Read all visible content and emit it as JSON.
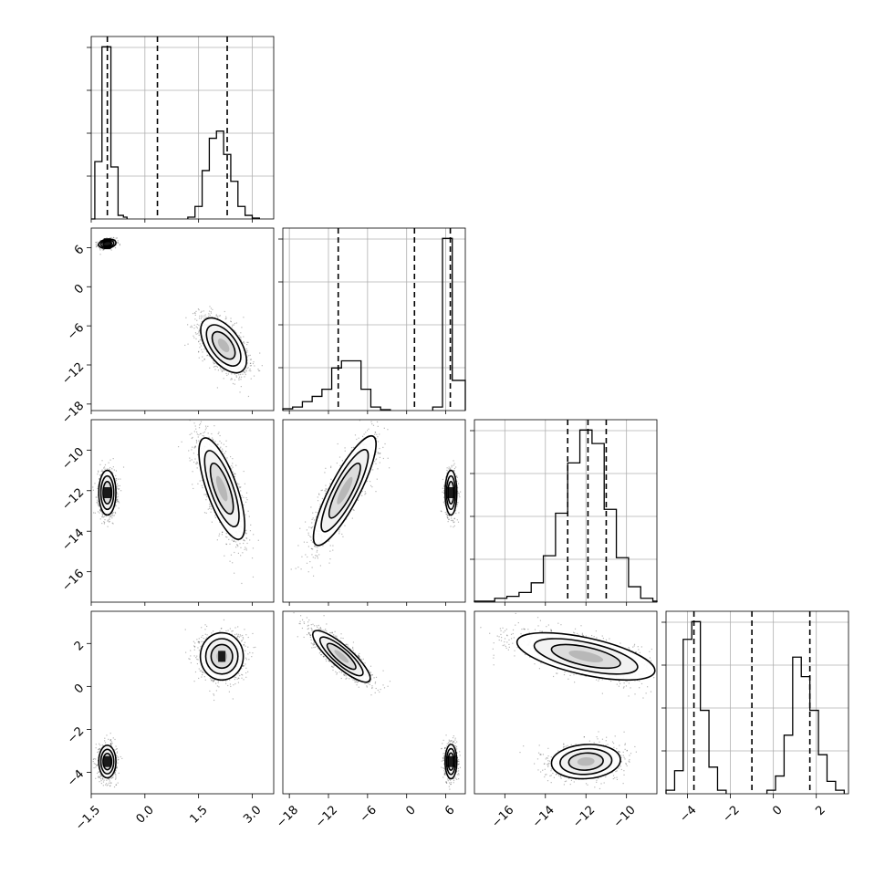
{
  "chart_data": {
    "type": "corner",
    "grid": true,
    "parameters": [
      {
        "id": "p0",
        "range": [
          -1.5,
          3.6
        ],
        "ticks": [
          -1.5,
          0.0,
          1.5,
          3.0
        ],
        "tick_labels": [
          "−1.5",
          "0.0",
          "1.5",
          "3.0"
        ]
      },
      {
        "id": "p1",
        "range": [
          -19,
          9
        ],
        "ticks": [
          -18,
          -12,
          -6,
          0,
          6
        ],
        "tick_labels": [
          "−18",
          "−12",
          "−6",
          "0",
          "6"
        ]
      },
      {
        "id": "p2",
        "range": [
          -17.5,
          -8.5
        ],
        "ticks": [
          -16,
          -14,
          -12,
          -10
        ],
        "tick_labels": [
          "−16",
          "−14",
          "−12",
          "−10"
        ]
      },
      {
        "id": "p3",
        "range": [
          -5,
          3.5
        ],
        "ticks": [
          -4,
          -2,
          0,
          2
        ],
        "tick_labels": [
          "−4",
          "−2",
          "0",
          "2"
        ]
      }
    ],
    "histograms": [
      {
        "param": "p0",
        "bins": [
          [
            -1.5,
            -1.4,
            0
          ],
          [
            -1.4,
            -1.2,
            0.32
          ],
          [
            -1.2,
            -0.95,
            0.96
          ],
          [
            -0.95,
            -0.75,
            0.29
          ],
          [
            -0.75,
            -0.6,
            0.02
          ],
          [
            -0.6,
            -0.5,
            0.01
          ],
          [
            1.2,
            1.4,
            0.01
          ],
          [
            1.4,
            1.6,
            0.07
          ],
          [
            1.6,
            1.8,
            0.27
          ],
          [
            1.8,
            2.0,
            0.45
          ],
          [
            2.0,
            2.2,
            0.49
          ],
          [
            2.2,
            2.4,
            0.36
          ],
          [
            2.4,
            2.6,
            0.21
          ],
          [
            2.6,
            2.8,
            0.07
          ],
          [
            2.8,
            3.0,
            0.02
          ],
          [
            3.0,
            3.2,
            0.005
          ]
        ],
        "quantiles": [
          -1.05,
          0.35,
          2.3
        ]
      },
      {
        "param": "p1",
        "bins": [
          [
            -19,
            -17.5,
            0.01
          ],
          [
            -17.5,
            -16,
            0.02
          ],
          [
            -16,
            -14.5,
            0.05
          ],
          [
            -14.5,
            -13,
            0.08
          ],
          [
            -13,
            -11.5,
            0.12
          ],
          [
            -11.5,
            -10,
            0.24
          ],
          [
            -10,
            -8.5,
            0.28
          ],
          [
            -8.5,
            -7,
            0.28
          ],
          [
            -7,
            -5.5,
            0.12
          ],
          [
            -5.5,
            -4,
            0.02
          ],
          [
            -4,
            -2.5,
            0.005
          ],
          [
            4.0,
            5.5,
            0.02
          ],
          [
            5.5,
            7.0,
            0.97
          ],
          [
            7.0,
            9.0,
            0.17
          ]
        ],
        "quantiles": [
          -10.5,
          1.2,
          6.7
        ]
      },
      {
        "param": "p2",
        "bins": [
          [
            -17.5,
            -16.5,
            0.005
          ],
          [
            -16.5,
            -15.9,
            0.02
          ],
          [
            -15.9,
            -15.3,
            0.03
          ],
          [
            -15.3,
            -14.7,
            0.05
          ],
          [
            -14.7,
            -14.1,
            0.1
          ],
          [
            -14.1,
            -13.5,
            0.24
          ],
          [
            -13.5,
            -12.9,
            0.46
          ],
          [
            -12.9,
            -12.3,
            0.72
          ],
          [
            -12.3,
            -11.7,
            0.89
          ],
          [
            -11.7,
            -11.1,
            0.82
          ],
          [
            -11.1,
            -10.5,
            0.48
          ],
          [
            -10.5,
            -9.9,
            0.23
          ],
          [
            -9.9,
            -9.3,
            0.08
          ],
          [
            -9.3,
            -8.7,
            0.02
          ],
          [
            -8.7,
            -8.5,
            0.005
          ]
        ],
        "quantiles": [
          -12.9,
          -11.9,
          -11.0
        ]
      },
      {
        "param": "p3",
        "bins": [
          [
            -5.0,
            -4.6,
            0.02
          ],
          [
            -4.6,
            -4.2,
            0.13
          ],
          [
            -4.2,
            -3.8,
            0.87
          ],
          [
            -3.8,
            -3.4,
            0.97
          ],
          [
            -3.4,
            -3.0,
            0.47
          ],
          [
            -3.0,
            -2.6,
            0.15
          ],
          [
            -2.6,
            -2.2,
            0.02
          ],
          [
            -0.3,
            0.1,
            0.02
          ],
          [
            0.1,
            0.5,
            0.1
          ],
          [
            0.5,
            0.9,
            0.33
          ],
          [
            0.9,
            1.3,
            0.77
          ],
          [
            1.3,
            1.7,
            0.66
          ],
          [
            1.7,
            2.1,
            0.47
          ],
          [
            2.1,
            2.5,
            0.22
          ],
          [
            2.5,
            2.9,
            0.07
          ],
          [
            2.9,
            3.3,
            0.02
          ]
        ],
        "quantiles": [
          -3.7,
          -1.0,
          1.7
        ]
      }
    ],
    "scatter_panels": [
      {
        "x": "p0",
        "y": "p1",
        "clusters": [
          {
            "mean": [
              -1.05,
              6.6
            ],
            "sd": [
              0.12,
              0.35
            ],
            "rho": 0.2,
            "n": 500
          },
          {
            "mean": [
              2.2,
              -9.0
            ],
            "sd": [
              0.32,
              2.1
            ],
            "rho": -0.55,
            "n": 1300
          }
        ]
      },
      {
        "x": "p0",
        "y": "p2",
        "clusters": [
          {
            "mean": [
              -1.05,
              -12.1
            ],
            "sd": [
              0.12,
              0.55
            ],
            "rho": 0.0,
            "n": 900
          },
          {
            "mean": [
              2.15,
              -11.9
            ],
            "sd": [
              0.32,
              1.25
            ],
            "rho": -0.72,
            "n": 1200
          }
        ]
      },
      {
        "x": "p0",
        "y": "p3",
        "clusters": [
          {
            "mean": [
              -1.05,
              -3.5
            ],
            "sd": [
              0.12,
              0.38
            ],
            "rho": 0.0,
            "n": 900
          },
          {
            "mean": [
              2.15,
              1.4
            ],
            "sd": [
              0.3,
              0.55
            ],
            "rho": 0.0,
            "n": 1100
          }
        ]
      },
      {
        "x": "p1",
        "y": "p2",
        "clusters": [
          {
            "mean": [
              -9.5,
              -12.0
            ],
            "sd": [
              2.4,
              1.35
            ],
            "rho": 0.85,
            "n": 1300
          },
          {
            "mean": [
              6.8,
              -12.1
            ],
            "sd": [
              0.45,
              0.55
            ],
            "rho": 0.0,
            "n": 800
          }
        ]
      },
      {
        "x": "p1",
        "y": "p3",
        "clusters": [
          {
            "mean": [
              -10.0,
              1.4
            ],
            "sd": [
              2.2,
              0.6
            ],
            "rho": -0.85,
            "n": 1200
          },
          {
            "mean": [
              6.8,
              -3.5
            ],
            "sd": [
              0.45,
              0.4
            ],
            "rho": 0.0,
            "n": 800
          }
        ]
      },
      {
        "x": "p2",
        "y": "p3",
        "clusters": [
          {
            "mean": [
              -12.0,
              1.4
            ],
            "sd": [
              1.7,
              0.55
            ],
            "rho": -0.6,
            "n": 1200
          },
          {
            "mean": [
              -12.0,
              -3.5
            ],
            "sd": [
              0.85,
              0.4
            ],
            "rho": 0.1,
            "n": 1000
          }
        ]
      }
    ]
  },
  "colors": {
    "scatter": "#000000",
    "density_fill_light": "#ececec",
    "density_fill_dark": "#1a1a1a",
    "grid": "#b0b0b0"
  }
}
